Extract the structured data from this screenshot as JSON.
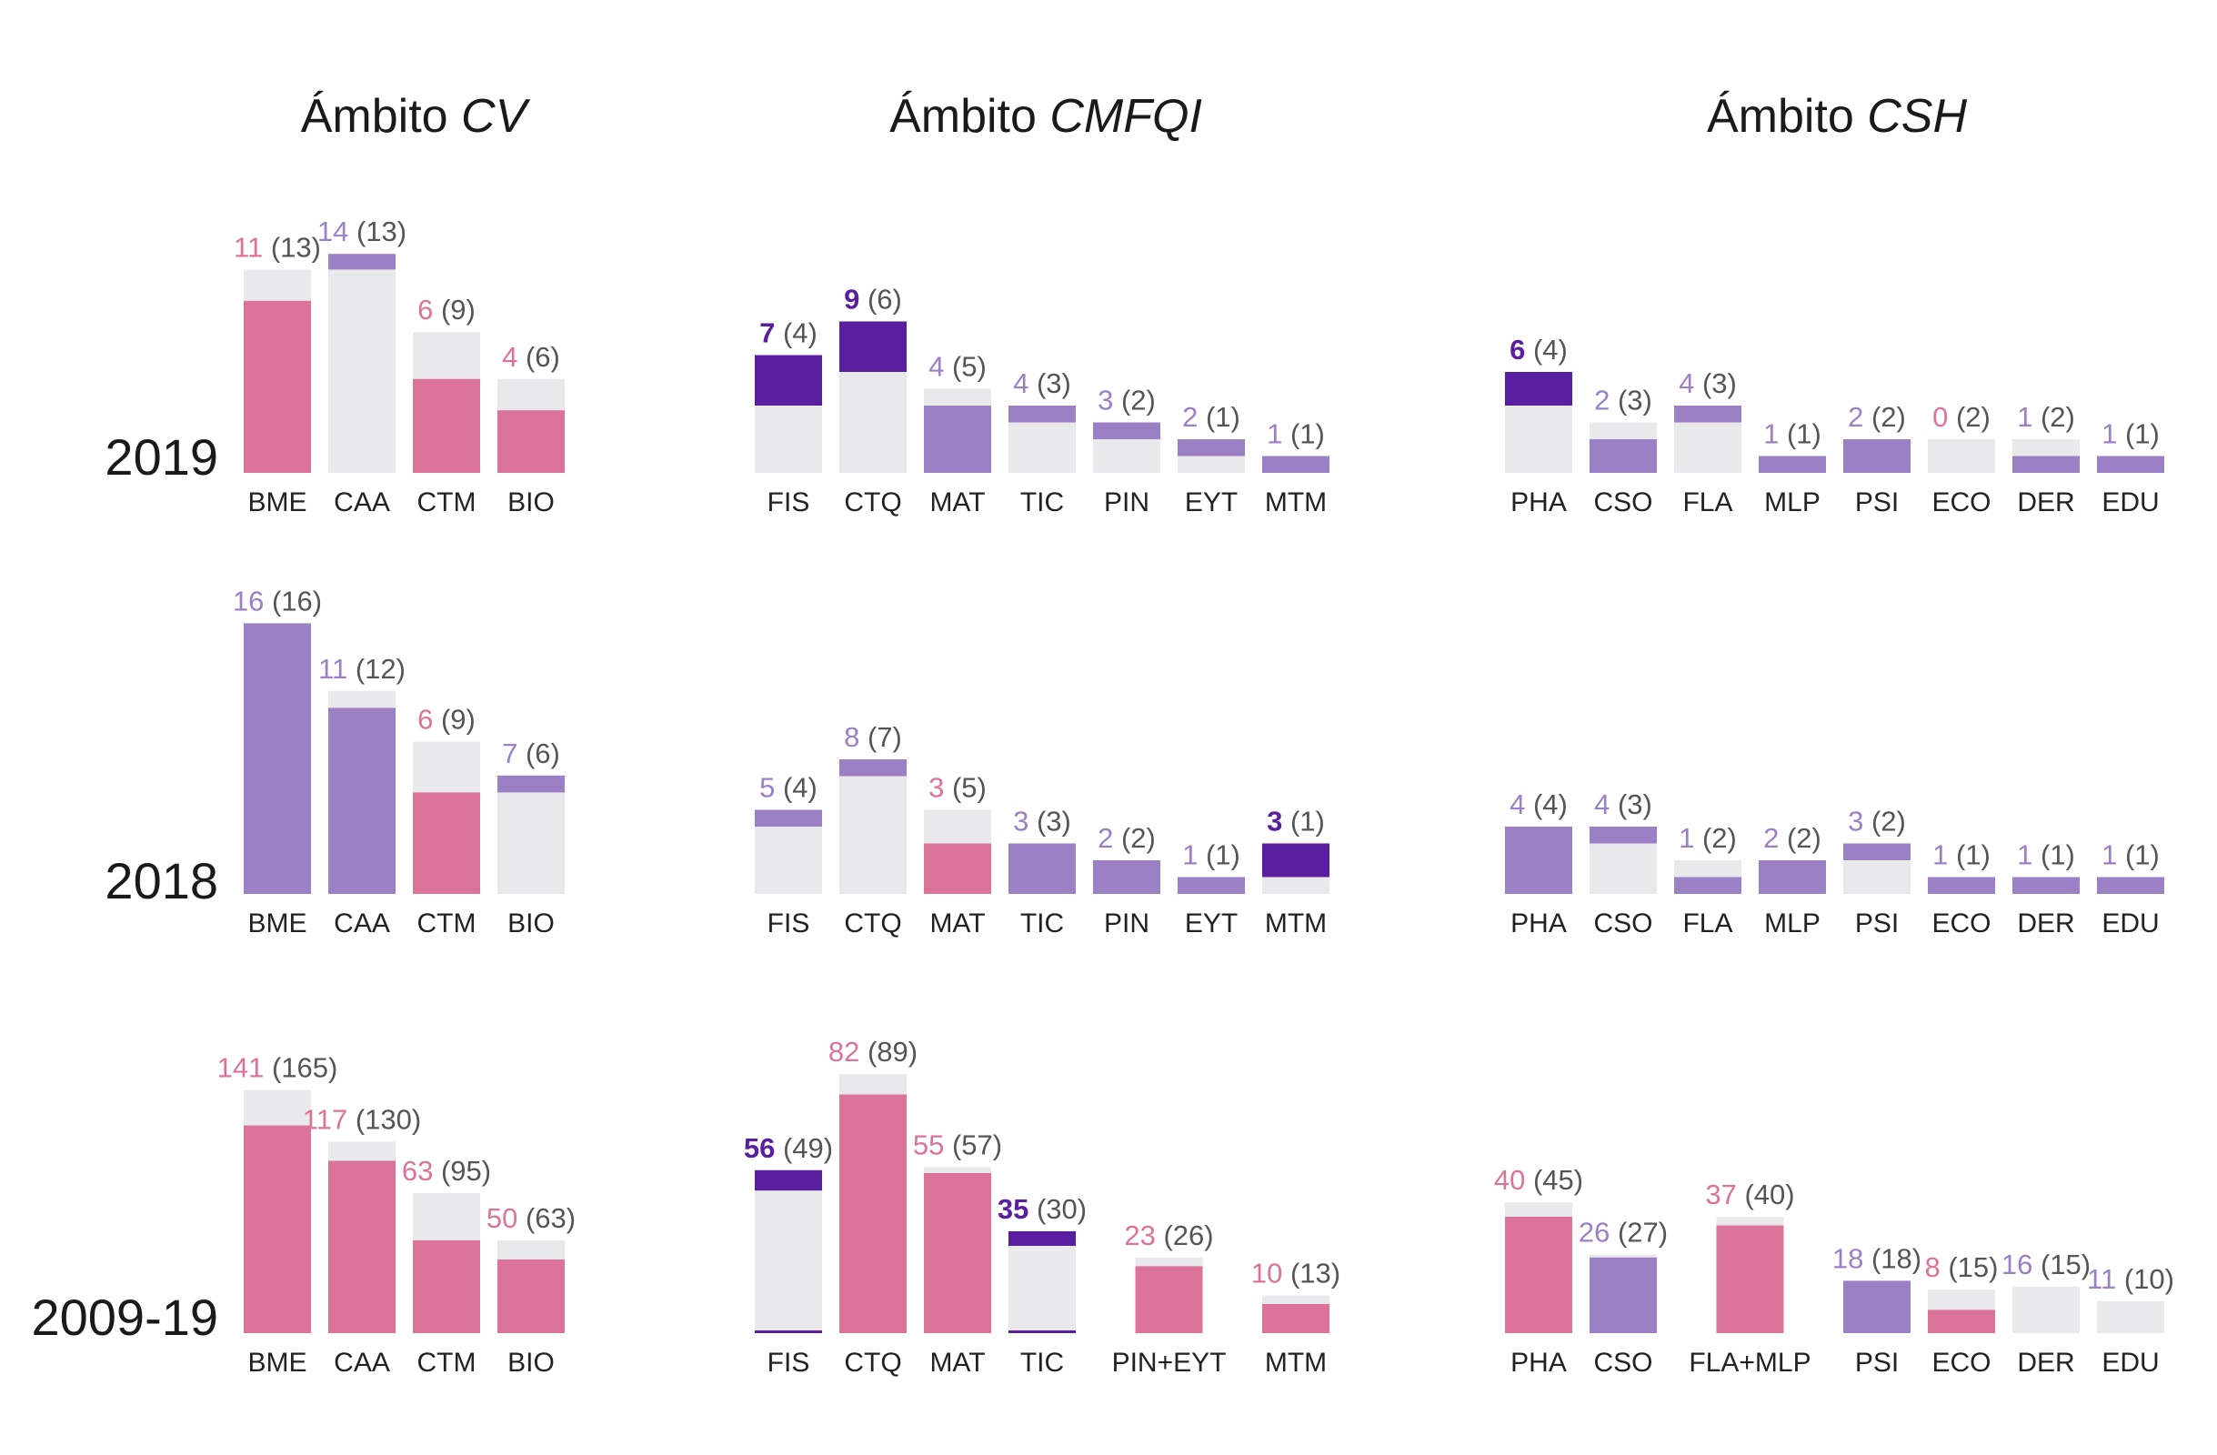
{
  "colors": {
    "pink": "#dc7398",
    "lavender": "#9c80c6",
    "dark_purple": "#5a1ea0",
    "gray": "#e9e9ec",
    "prev_label": "#555555"
  },
  "chart_data": {
    "type": "bar",
    "note_values": "value = current count (colored bar); prev = count in parentheses (gray bar)",
    "panels_titles": [
      {
        "prefix": "Ámbito ",
        "name": "CV"
      },
      {
        "prefix": "Ámbito ",
        "name": "CMFQI"
      },
      {
        "prefix": "Ámbito ",
        "name": "CSH"
      }
    ],
    "rows": [
      {
        "year": "2019",
        "panels": [
          {
            "bars": [
              {
                "label": "BME",
                "value": 11,
                "prev": 13,
                "color": "pink"
              },
              {
                "label": "CAA",
                "value": 14,
                "prev": 13,
                "color": "lavender"
              },
              {
                "label": "CTM",
                "value": 6,
                "prev": 9,
                "color": "pink"
              },
              {
                "label": "BIO",
                "value": 4,
                "prev": 6,
                "color": "pink"
              }
            ]
          },
          {
            "bars": [
              {
                "label": "FIS",
                "value": 7,
                "prev": 4,
                "color": "dark_purple"
              },
              {
                "label": "CTQ",
                "value": 9,
                "prev": 6,
                "color": "dark_purple"
              },
              {
                "label": "MAT",
                "value": 4,
                "prev": 5,
                "color": "lavender"
              },
              {
                "label": "TIC",
                "value": 4,
                "prev": 3,
                "color": "lavender"
              },
              {
                "label": "PIN",
                "value": 3,
                "prev": 2,
                "color": "lavender"
              },
              {
                "label": "EYT",
                "value": 2,
                "prev": 1,
                "color": "lavender"
              },
              {
                "label": "MTM",
                "value": 1,
                "prev": 1,
                "color": "lavender"
              }
            ]
          },
          {
            "bars": [
              {
                "label": "PHA",
                "value": 6,
                "prev": 4,
                "color": "dark_purple"
              },
              {
                "label": "CSO",
                "value": 2,
                "prev": 3,
                "color": "lavender"
              },
              {
                "label": "FLA",
                "value": 4,
                "prev": 3,
                "color": "lavender"
              },
              {
                "label": "MLP",
                "value": 1,
                "prev": 1,
                "color": "lavender"
              },
              {
                "label": "PSI",
                "value": 2,
                "prev": 2,
                "color": "lavender"
              },
              {
                "label": "ECO",
                "value": 0,
                "prev": 2,
                "color": "pink"
              },
              {
                "label": "DER",
                "value": 1,
                "prev": 2,
                "color": "lavender"
              },
              {
                "label": "EDU",
                "value": 1,
                "prev": 1,
                "color": "lavender"
              }
            ]
          }
        ]
      },
      {
        "year": "2018",
        "panels": [
          {
            "bars": [
              {
                "label": "BME",
                "value": 16,
                "prev": 16,
                "color": "lavender"
              },
              {
                "label": "CAA",
                "value": 11,
                "prev": 12,
                "color": "lavender"
              },
              {
                "label": "CTM",
                "value": 6,
                "prev": 9,
                "color": "pink"
              },
              {
                "label": "BIO",
                "value": 7,
                "prev": 6,
                "color": "lavender"
              }
            ]
          },
          {
            "bars": [
              {
                "label": "FIS",
                "value": 5,
                "prev": 4,
                "color": "lavender"
              },
              {
                "label": "CTQ",
                "value": 8,
                "prev": 7,
                "color": "lavender"
              },
              {
                "label": "MAT",
                "value": 3,
                "prev": 5,
                "color": "pink"
              },
              {
                "label": "TIC",
                "value": 3,
                "prev": 3,
                "color": "lavender"
              },
              {
                "label": "PIN",
                "value": 2,
                "prev": 2,
                "color": "lavender"
              },
              {
                "label": "EYT",
                "value": 1,
                "prev": 1,
                "color": "lavender"
              },
              {
                "label": "MTM",
                "value": 3,
                "prev": 1,
                "color": "dark_purple"
              }
            ]
          },
          {
            "bars": [
              {
                "label": "PHA",
                "value": 4,
                "prev": 4,
                "color": "lavender"
              },
              {
                "label": "CSO",
                "value": 4,
                "prev": 3,
                "color": "lavender"
              },
              {
                "label": "FLA",
                "value": 1,
                "prev": 2,
                "color": "lavender"
              },
              {
                "label": "MLP",
                "value": 2,
                "prev": 2,
                "color": "lavender"
              },
              {
                "label": "PSI",
                "value": 3,
                "prev": 2,
                "color": "lavender"
              },
              {
                "label": "ECO",
                "value": 1,
                "prev": 1,
                "color": "lavender"
              },
              {
                "label": "DER",
                "value": 1,
                "prev": 1,
                "color": "lavender"
              },
              {
                "label": "EDU",
                "value": 1,
                "prev": 1,
                "color": "lavender"
              }
            ]
          }
        ]
      },
      {
        "year": "2009-19",
        "panels": [
          {
            "bars": [
              {
                "label": "BME",
                "value": 141,
                "prev": 165,
                "color": "pink"
              },
              {
                "label": "CAA",
                "value": 117,
                "prev": 130,
                "color": "pink"
              },
              {
                "label": "CTM",
                "value": 63,
                "prev": 95,
                "color": "pink"
              },
              {
                "label": "BIO",
                "value": 50,
                "prev": 63,
                "color": "pink"
              }
            ]
          },
          {
            "bars": [
              {
                "label": "FIS",
                "value": 56,
                "prev": 49,
                "color": "dark_purple"
              },
              {
                "label": "CTQ",
                "value": 82,
                "prev": 89,
                "color": "pink"
              },
              {
                "label": "MAT",
                "value": 55,
                "prev": 57,
                "color": "pink"
              },
              {
                "label": "TIC",
                "value": 35,
                "prev": 30,
                "color": "dark_purple"
              },
              {
                "label": "PIN+EYT",
                "value": 23,
                "prev": 26,
                "color": "pink"
              },
              {
                "label": "MTM",
                "value": 10,
                "prev": 13,
                "color": "pink"
              }
            ]
          },
          {
            "bars": [
              {
                "label": "PHA",
                "value": 40,
                "prev": 45,
                "color": "pink"
              },
              {
                "label": "CSO",
                "value": 26,
                "prev": 27,
                "color": "lavender"
              },
              {
                "label": "FLA+MLP",
                "value": 37,
                "prev": 40,
                "color": "pink"
              },
              {
                "label": "PSI",
                "value": 18,
                "prev": 18,
                "color": "lavender"
              },
              {
                "label": "ECO",
                "value": 8,
                "prev": 15,
                "color": "pink"
              },
              {
                "label": "DER",
                "value": 16,
                "prev": 15,
                "color": "gray"
              },
              {
                "label": "EDU",
                "value": 11,
                "prev": 10,
                "color": "gray"
              }
            ]
          }
        ]
      }
    ]
  }
}
